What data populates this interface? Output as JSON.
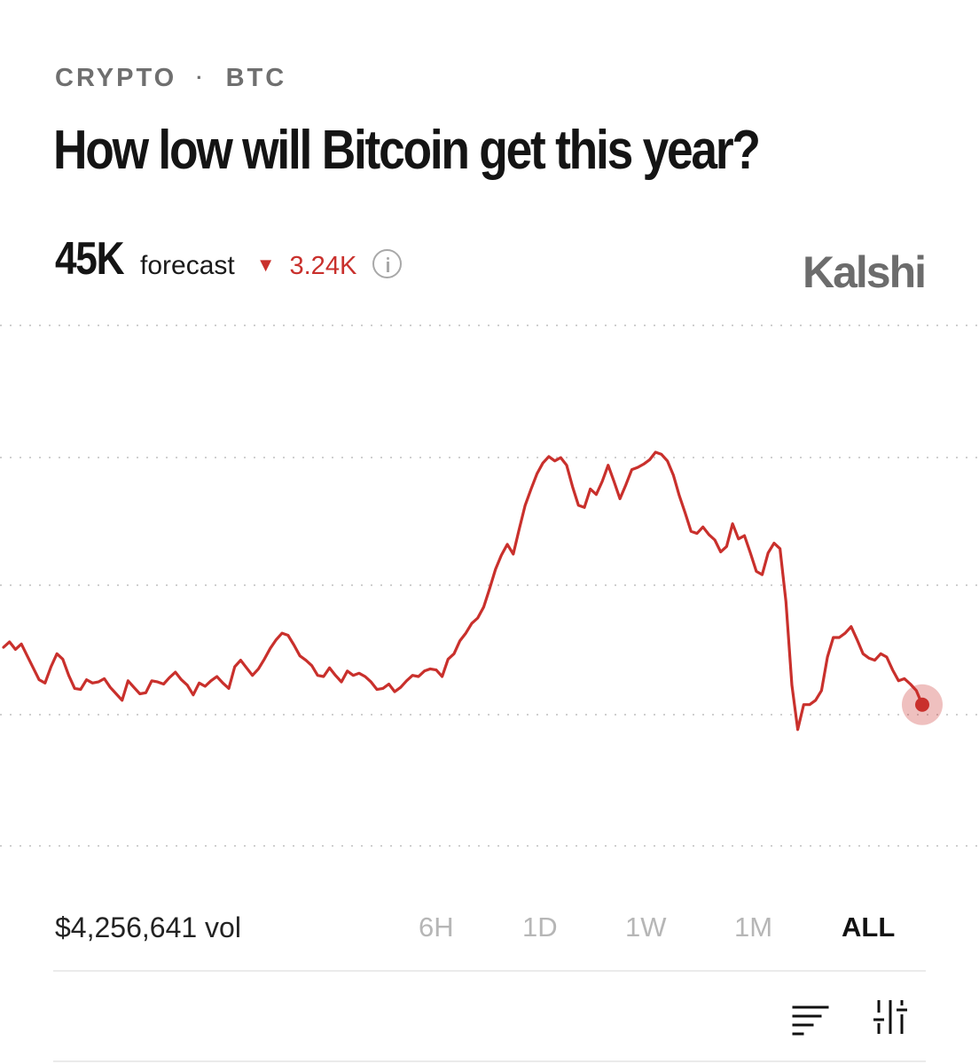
{
  "breadcrumb": {
    "category": "CRYPTO",
    "separator": "·",
    "ticker": "BTC"
  },
  "market": {
    "title": "How low will Bitcoin get this year?",
    "forecast_value": "45K",
    "forecast_label": "forecast",
    "change_value": "3.24K",
    "change_direction": "down",
    "brand": "Kalshi"
  },
  "colors": {
    "line": "#c9302c",
    "up": "#2a9d5b",
    "down": "#c9302c",
    "muted": "#b6b6b6"
  },
  "volume": {
    "label": "$4,256,641 vol"
  },
  "time_ranges": [
    {
      "label": "6H",
      "active": false
    },
    {
      "label": "1D",
      "active": false
    },
    {
      "label": "1W",
      "active": false
    },
    {
      "label": "1M",
      "active": false
    },
    {
      "label": "ALL",
      "active": true
    }
  ],
  "icons": {
    "sort": "sort-lines-icon",
    "filter": "sliders-icon",
    "info": "info-icon",
    "change": "triangle-down-icon"
  },
  "chart_data": {
    "type": "line",
    "grid": "dotted-horizontal",
    "series": [
      {
        "values": [
          49.5,
          50,
          49.3,
          49.8,
          48.7,
          47.6,
          46.5,
          46.2,
          47.7,
          48.9,
          48.4,
          46.9,
          45.7,
          45.6,
          46.5,
          46.2,
          46.3,
          46.6,
          45.8,
          45.2,
          44.6,
          46.4,
          45.8,
          45.2,
          45.3,
          46.4,
          46.3,
          46.1,
          46.7,
          47.2,
          46.5,
          46,
          45.1,
          46.2,
          45.9,
          46.4,
          46.8,
          46.2,
          45.7,
          47.7,
          48.3,
          47.6,
          46.9,
          47.5,
          48.4,
          49.4,
          50.2,
          50.8,
          50.6,
          49.7,
          48.7,
          48.3,
          47.8,
          46.9,
          46.8,
          47.6,
          46.9,
          46.3,
          47.3,
          46.9,
          47.1,
          46.8,
          46.3,
          45.6,
          45.7,
          46.1,
          45.4,
          45.8,
          46.4,
          46.9,
          46.8,
          47.3,
          47.5,
          47.4,
          46.8,
          48.4,
          48.9,
          50.1,
          50.8,
          51.7,
          52.2,
          53.2,
          54.9,
          56.7,
          58,
          59,
          58.1,
          60.4,
          62.6,
          64.1,
          65.5,
          66.5,
          67.1,
          66.7,
          67,
          66.3,
          64.3,
          62.6,
          62.4,
          64.1,
          63.6,
          64.8,
          66.3,
          64.8,
          63.2,
          64.5,
          65.9,
          66.1,
          66.4,
          66.8,
          67.5,
          67.3,
          66.7,
          65.4,
          63.5,
          61.9,
          60.2,
          60,
          60.6,
          59.9,
          59.4,
          58.3,
          58.8,
          60.9,
          59.5,
          59.8,
          58.2,
          56.5,
          56.2,
          58.2,
          59.1,
          58.6,
          53.7,
          46,
          41.9,
          44.2,
          44.2,
          44.6,
          45.5,
          48.6,
          50.4,
          50.4,
          50.8,
          51.4,
          50.2,
          48.9,
          48.5,
          48.3,
          48.9,
          48.6,
          47.4,
          46.4,
          46.6,
          46.1,
          45.5,
          44.2
        ]
      }
    ]
  }
}
